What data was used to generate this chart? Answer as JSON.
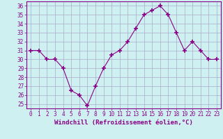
{
  "x": [
    0,
    1,
    2,
    3,
    4,
    5,
    6,
    7,
    8,
    9,
    10,
    11,
    12,
    13,
    14,
    15,
    16,
    17,
    18,
    19,
    20,
    21,
    22,
    23
  ],
  "y": [
    31.0,
    31.0,
    30.0,
    30.0,
    29.0,
    26.5,
    26.0,
    24.8,
    27.0,
    29.0,
    30.5,
    31.0,
    32.0,
    33.5,
    35.0,
    35.5,
    36.0,
    35.0,
    33.0,
    31.0,
    32.0,
    31.0,
    30.0,
    30.0
  ],
  "line_color": "#880088",
  "marker": "+",
  "marker_size": 4,
  "marker_lw": 1.2,
  "bg_color": "#cff0f0",
  "grid_color": "#aaaacc",
  "xlabel": "Windchill (Refroidissement éolien,°C)",
  "xlim": [
    -0.5,
    23.5
  ],
  "ylim": [
    24.5,
    36.5
  ],
  "yticks": [
    25,
    26,
    27,
    28,
    29,
    30,
    31,
    32,
    33,
    34,
    35,
    36
  ],
  "xticks": [
    0,
    1,
    2,
    3,
    4,
    5,
    6,
    7,
    8,
    9,
    10,
    11,
    12,
    13,
    14,
    15,
    16,
    17,
    18,
    19,
    20,
    21,
    22,
    23
  ],
  "tick_fontsize": 5.5,
  "xlabel_fontsize": 6.5,
  "label_color": "#880088",
  "spine_color": "#880088",
  "linewidth": 0.8
}
